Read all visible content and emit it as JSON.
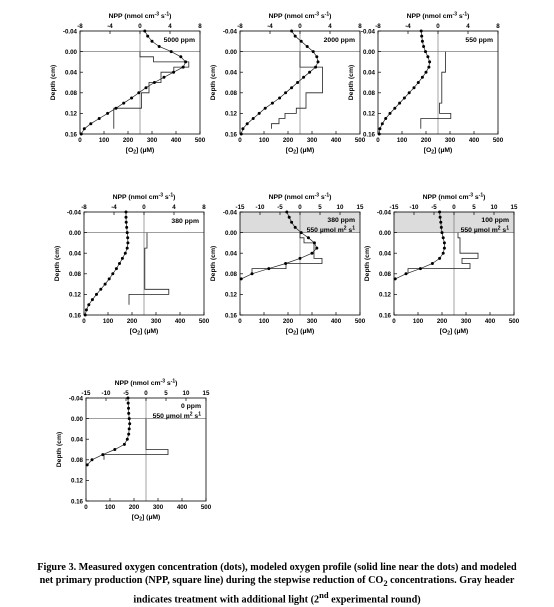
{
  "axis_text": {
    "npp_label": "NPP (nmol cm",
    "npp_exp": "-3",
    "npp_s": " s",
    "npp_s_exp": "-1",
    "npp_close": ")",
    "o2_label": "[O",
    "o2_sub": "2",
    "o2_close": "] (µM)",
    "depth_label": "Depth (cm)",
    "light_unit": "µmol m",
    "light_unit_exp": "2",
    "light_unit_s": " s",
    "light_unit_s_exp": "1"
  },
  "caption": {
    "line1": "Figure 3. Measured oxygen concentration (dots), modeled oxygen profile (solid line near the dots) and modeled",
    "line2a": "net primary production (NPP, square line) during the stepwise reduction of CO",
    "line2_sub": "2",
    "line2b": " concentrations. Gray header",
    "line3a": "indicates treatment with additional light (2",
    "line3_sup": "nd",
    "line3b": " experimental round)"
  },
  "chart_data": [
    {
      "type": "line",
      "panel": "5000 ppm",
      "label": "5000 ppm",
      "light": "",
      "shaded": false,
      "x_o2_range": [
        0,
        500
      ],
      "x_o2_ticks": [
        0,
        100,
        200,
        300,
        400,
        500
      ],
      "x_npp_range": [
        -8,
        8
      ],
      "x_npp_ticks": [
        -8,
        -4,
        0,
        4,
        8
      ],
      "y_range": [
        -0.04,
        0.16
      ],
      "y_ticks": [
        -0.04,
        0.0,
        0.04,
        0.08,
        0.12,
        0.16
      ],
      "o2_profile": {
        "depth": [
          -0.04,
          -0.03,
          -0.02,
          -0.01,
          0.0,
          0.01,
          0.02,
          0.03,
          0.04,
          0.05,
          0.06,
          0.07,
          0.08,
          0.09,
          0.1,
          0.11,
          0.12,
          0.13,
          0.14,
          0.15,
          0.16
        ],
        "o2": [
          270,
          282,
          300,
          330,
          380,
          420,
          440,
          430,
          390,
          350,
          310,
          275,
          245,
          215,
          182,
          150,
          115,
          80,
          45,
          18,
          5
        ]
      },
      "npp": {
        "depth": [
          0.0,
          0.01,
          0.01,
          0.02,
          0.02,
          0.03,
          0.03,
          0.04,
          0.04,
          0.06,
          0.06,
          0.08,
          0.08,
          0.11,
          0.11,
          0.15
        ],
        "npp": [
          0,
          0,
          1.8,
          1.8,
          6.5,
          6.5,
          4.5,
          4.5,
          2.8,
          2.8,
          1.2,
          1.2,
          0.2,
          0.2,
          -3.5,
          -3.5
        ]
      }
    },
    {
      "type": "line",
      "panel": "2000 ppm",
      "label": "2000 ppm",
      "light": "",
      "shaded": false,
      "x_o2_range": [
        0,
        500
      ],
      "x_o2_ticks": [
        0,
        100,
        200,
        300,
        400,
        500
      ],
      "x_npp_range": [
        -8,
        8
      ],
      "x_npp_ticks": [
        -8,
        -4,
        0,
        4,
        8
      ],
      "y_range": [
        -0.04,
        0.16
      ],
      "y_ticks": [
        -0.04,
        0.0,
        0.04,
        0.08,
        0.12,
        0.16
      ],
      "o2_profile": {
        "depth": [
          -0.04,
          -0.03,
          -0.02,
          -0.01,
          0.0,
          0.01,
          0.02,
          0.03,
          0.04,
          0.05,
          0.06,
          0.07,
          0.08,
          0.09,
          0.1,
          0.11,
          0.12,
          0.13,
          0.14,
          0.15,
          0.16
        ],
        "o2": [
          215,
          230,
          255,
          280,
          305,
          320,
          325,
          315,
          290,
          265,
          240,
          215,
          190,
          165,
          135,
          105,
          80,
          55,
          30,
          12,
          5
        ]
      },
      "npp": {
        "depth": [
          0.0,
          0.03,
          0.03,
          0.08,
          0.08,
          0.11,
          0.11,
          0.12,
          0.12,
          0.13,
          0.13,
          0.14,
          0.14,
          0.15
        ],
        "npp": [
          0,
          0,
          3.0,
          3.0,
          0.8,
          0.8,
          -0.5,
          -0.5,
          -2.0,
          -2.0,
          -2.8,
          -2.8,
          -3.8,
          -3.8
        ]
      }
    },
    {
      "type": "line",
      "panel": "550 ppm",
      "label": "550 ppm",
      "light": "",
      "shaded": false,
      "x_o2_range": [
        0,
        500
      ],
      "x_o2_ticks": [
        0,
        100,
        200,
        300,
        400,
        500
      ],
      "x_npp_range": [
        -8,
        8
      ],
      "x_npp_ticks": [
        -8,
        -4,
        0,
        4,
        8
      ],
      "y_range": [
        -0.04,
        0.16
      ],
      "y_ticks": [
        -0.04,
        0.0,
        0.04,
        0.08,
        0.12,
        0.16
      ],
      "o2_profile": {
        "depth": [
          -0.04,
          -0.03,
          -0.02,
          -0.01,
          0.0,
          0.01,
          0.02,
          0.03,
          0.04,
          0.05,
          0.06,
          0.07,
          0.08,
          0.09,
          0.1,
          0.11,
          0.12,
          0.13,
          0.14,
          0.15,
          0.16
        ],
        "o2": [
          180,
          182,
          185,
          190,
          198,
          208,
          215,
          212,
          200,
          185,
          168,
          150,
          130,
          110,
          90,
          70,
          50,
          32,
          18,
          8,
          5
        ]
      },
      "npp": {
        "depth": [
          0.0,
          0.04,
          0.04,
          0.1,
          0.1,
          0.12,
          0.12,
          0.13,
          0.13,
          0.15
        ],
        "npp": [
          1.0,
          1.0,
          0.5,
          0.5,
          0.2,
          0.2,
          1.7,
          1.7,
          -2.3,
          -2.3
        ]
      }
    },
    {
      "type": "line",
      "panel": "380 ppm",
      "label": "380 ppm",
      "light": "",
      "shaded": false,
      "x_o2_range": [
        0,
        500
      ],
      "x_o2_ticks": [
        0,
        100,
        200,
        300,
        400,
        500
      ],
      "x_npp_range": [
        -8,
        8
      ],
      "x_npp_ticks": [
        -8,
        -4,
        0,
        4,
        8
      ],
      "y_range": [
        -0.04,
        0.16
      ],
      "y_ticks": [
        -0.04,
        0.0,
        0.04,
        0.08,
        0.12,
        0.16
      ],
      "o2_profile": {
        "depth": [
          -0.04,
          -0.03,
          -0.02,
          -0.01,
          0.0,
          0.01,
          0.02,
          0.03,
          0.04,
          0.05,
          0.06,
          0.07,
          0.08,
          0.09,
          0.1,
          0.11,
          0.12,
          0.13,
          0.14,
          0.15,
          0.16
        ],
        "o2": [
          175,
          175,
          176,
          178,
          180,
          182,
          183,
          180,
          172,
          160,
          148,
          135,
          120,
          105,
          88,
          70,
          52,
          35,
          20,
          10,
          5
        ]
      },
      "npp": {
        "depth": [
          0.0,
          0.03,
          0.03,
          0.11,
          0.11,
          0.12,
          0.12,
          0.14
        ],
        "npp": [
          0.4,
          0.4,
          0.1,
          0.1,
          3.3,
          3.3,
          -2.0,
          -2.0
        ]
      }
    },
    {
      "type": "line",
      "panel": "380 ppm light",
      "label": "380 ppm",
      "light": "550",
      "shaded": true,
      "x_o2_range": [
        0,
        500
      ],
      "x_o2_ticks": [
        0,
        100,
        200,
        300,
        400,
        500
      ],
      "x_npp_range": [
        -15,
        15
      ],
      "x_npp_ticks": [
        -15,
        -10,
        -5,
        0,
        5,
        10,
        15
      ],
      "y_range": [
        -0.04,
        0.16
      ],
      "y_ticks": [
        -0.04,
        0.0,
        0.04,
        0.08,
        0.12,
        0.16
      ],
      "o2_profile": {
        "depth": [
          -0.04,
          -0.03,
          -0.02,
          -0.01,
          0.0,
          0.01,
          0.02,
          0.03,
          0.04,
          0.05,
          0.06,
          0.07,
          0.08,
          0.09
        ],
        "o2": [
          195,
          205,
          215,
          230,
          255,
          285,
          310,
          320,
          300,
          250,
          190,
          120,
          50,
          5
        ]
      },
      "npp": {
        "depth": [
          0.0,
          0.01,
          0.01,
          0.02,
          0.02,
          0.05,
          0.05,
          0.06,
          0.06,
          0.07,
          0.07,
          0.08
        ],
        "npp": [
          0,
          0,
          1.0,
          1.0,
          3.5,
          3.5,
          5.5,
          5.5,
          -3.5,
          -3.5,
          -12.0,
          -12.0
        ]
      }
    },
    {
      "type": "line",
      "panel": "100 ppm light",
      "label": "100 ppm",
      "light": "550",
      "shaded": true,
      "x_o2_range": [
        0,
        500
      ],
      "x_o2_ticks": [
        0,
        100,
        200,
        300,
        400,
        500
      ],
      "x_npp_range": [
        -15,
        15
      ],
      "x_npp_ticks": [
        -15,
        -10,
        -5,
        0,
        5,
        10,
        15
      ],
      "y_range": [
        -0.04,
        0.16
      ],
      "y_ticks": [
        -0.04,
        0.0,
        0.04,
        0.08,
        0.12,
        0.16
      ],
      "o2_profile": {
        "depth": [
          -0.04,
          -0.03,
          -0.02,
          -0.01,
          0.0,
          0.01,
          0.02,
          0.03,
          0.04,
          0.05,
          0.06,
          0.07,
          0.08,
          0.09
        ],
        "o2": [
          190,
          192,
          195,
          197,
          200,
          205,
          210,
          210,
          205,
          190,
          160,
          110,
          50,
          5
        ]
      },
      "npp": {
        "depth": [
          0.0,
          0.01,
          0.01,
          0.04,
          0.04,
          0.05,
          0.05,
          0.06,
          0.06,
          0.07,
          0.07,
          0.08
        ],
        "npp": [
          1.0,
          1.0,
          1.5,
          1.5,
          6.0,
          6.0,
          2.0,
          2.0,
          4.0,
          4.0,
          -11.5,
          -11.5
        ]
      }
    },
    {
      "type": "line",
      "panel": "0 ppm light",
      "label": "0 ppm",
      "light": "550",
      "shaded": false,
      "x_o2_range": [
        0,
        500
      ],
      "x_o2_ticks": [
        0,
        100,
        200,
        300,
        400,
        500
      ],
      "x_npp_range": [
        -15,
        15
      ],
      "x_npp_ticks": [
        -15,
        -10,
        -5,
        0,
        5,
        10,
        15
      ],
      "y_range": [
        -0.04,
        0.16
      ],
      "y_ticks": [
        -0.04,
        0.0,
        0.04,
        0.08,
        0.12,
        0.16
      ],
      "o2_profile": {
        "depth": [
          -0.04,
          -0.03,
          -0.02,
          -0.01,
          0.0,
          0.01,
          0.02,
          0.03,
          0.04,
          0.05,
          0.06,
          0.07,
          0.08,
          0.09
        ],
        "o2": [
          175,
          176,
          177,
          178,
          180,
          182,
          180,
          178,
          172,
          160,
          120,
          70,
          25,
          5
        ]
      },
      "npp": {
        "depth": [
          0.0,
          0.06,
          0.06,
          0.07,
          0.07,
          0.08
        ],
        "npp": [
          0,
          0,
          5.5,
          5.5,
          -10.5,
          -10.5
        ]
      }
    }
  ]
}
